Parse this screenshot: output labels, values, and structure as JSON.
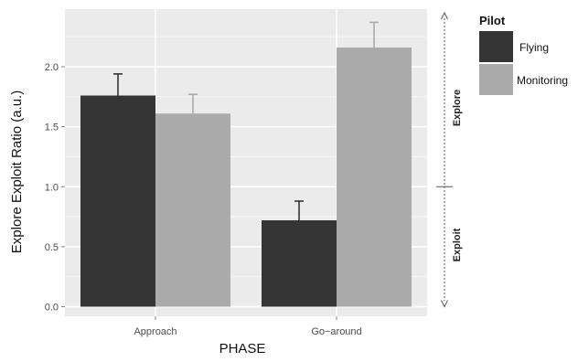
{
  "chart_data": {
    "type": "bar",
    "categories": [
      "Approach",
      "Go−around"
    ],
    "series": [
      {
        "name": "Flying",
        "values": [
          1.76,
          0.72
        ],
        "errors": [
          0.18,
          0.16
        ],
        "color": "#353535"
      },
      {
        "name": "Monitoring",
        "values": [
          1.61,
          2.16
        ],
        "errors": [
          0.16,
          0.21
        ],
        "color": "#ababab"
      }
    ],
    "xlabel": "PHASE",
    "ylabel": "Explore Exploit Ratio (a.u.)",
    "ylim": [
      -0.08,
      2.48
    ],
    "yticks": [
      "0.0",
      "0.5",
      "1.0",
      "1.5",
      "2.0"
    ],
    "grid": true,
    "panel_background": "#ebebeb",
    "legend": {
      "title": "Pilot",
      "position": "right"
    },
    "annotations": {
      "upper": {
        "label": "Explore",
        "from": 1.0,
        "to": 2.48
      },
      "lower": {
        "label": "Exploit",
        "from": 1.0,
        "to": 0.0
      }
    }
  }
}
